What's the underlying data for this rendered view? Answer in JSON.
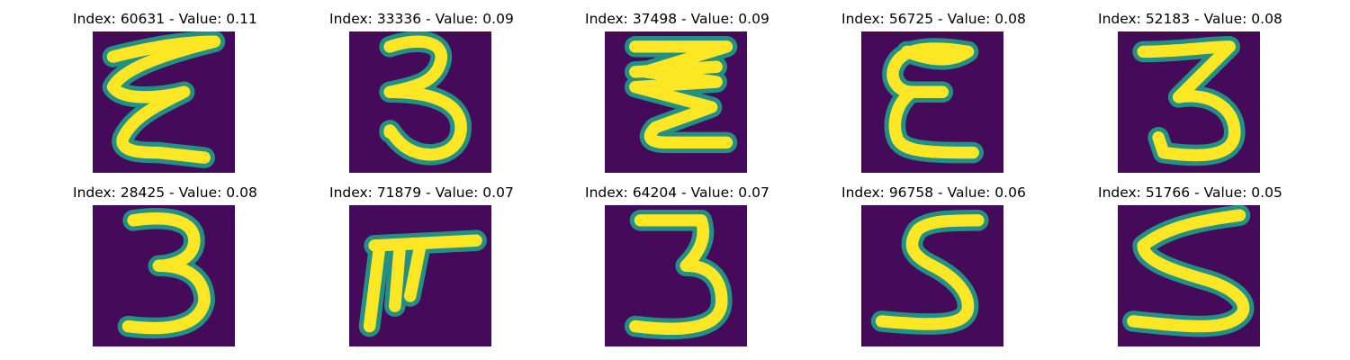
{
  "colors": {
    "background": "#450a5a",
    "halo": "#1f9e89",
    "glyph": "#fde725"
  },
  "panels": [
    {
      "title": "Index: 60631 - Value: 0.11",
      "index": 60631,
      "value": 0.11,
      "glyph_icon": "digit-2-like-icon"
    },
    {
      "title": "Index: 33336 - Value: 0.09",
      "index": 33336,
      "value": 0.09,
      "glyph_icon": "digit-3-icon"
    },
    {
      "title": "Index: 37498 - Value: 0.09",
      "index": 37498,
      "value": 0.09,
      "glyph_icon": "zigzag-3-icon"
    },
    {
      "title": "Index: 56725 - Value: 0.08",
      "index": 56725,
      "value": 0.08,
      "glyph_icon": "letter-e-icon"
    },
    {
      "title": "Index: 52183 - Value: 0.08",
      "index": 52183,
      "value": 0.08,
      "glyph_icon": "digit-3-icon"
    },
    {
      "title": "Index: 28425 - Value: 0.08",
      "index": 28425,
      "value": 0.08,
      "glyph_icon": "digit-3-icon"
    },
    {
      "title": "Index: 71879 - Value: 0.07",
      "index": 71879,
      "value": 0.07,
      "glyph_icon": "digit-7-like-icon"
    },
    {
      "title": "Index: 64204 - Value: 0.07",
      "index": 64204,
      "value": 0.07,
      "glyph_icon": "digit-3-icon"
    },
    {
      "title": "Index: 96758 - Value: 0.06",
      "index": 96758,
      "value": 0.06,
      "glyph_icon": "digit-5-icon"
    },
    {
      "title": "Index: 51766 - Value: 0.05",
      "index": 51766,
      "value": 0.05,
      "glyph_icon": "digit-5-icon"
    }
  ]
}
